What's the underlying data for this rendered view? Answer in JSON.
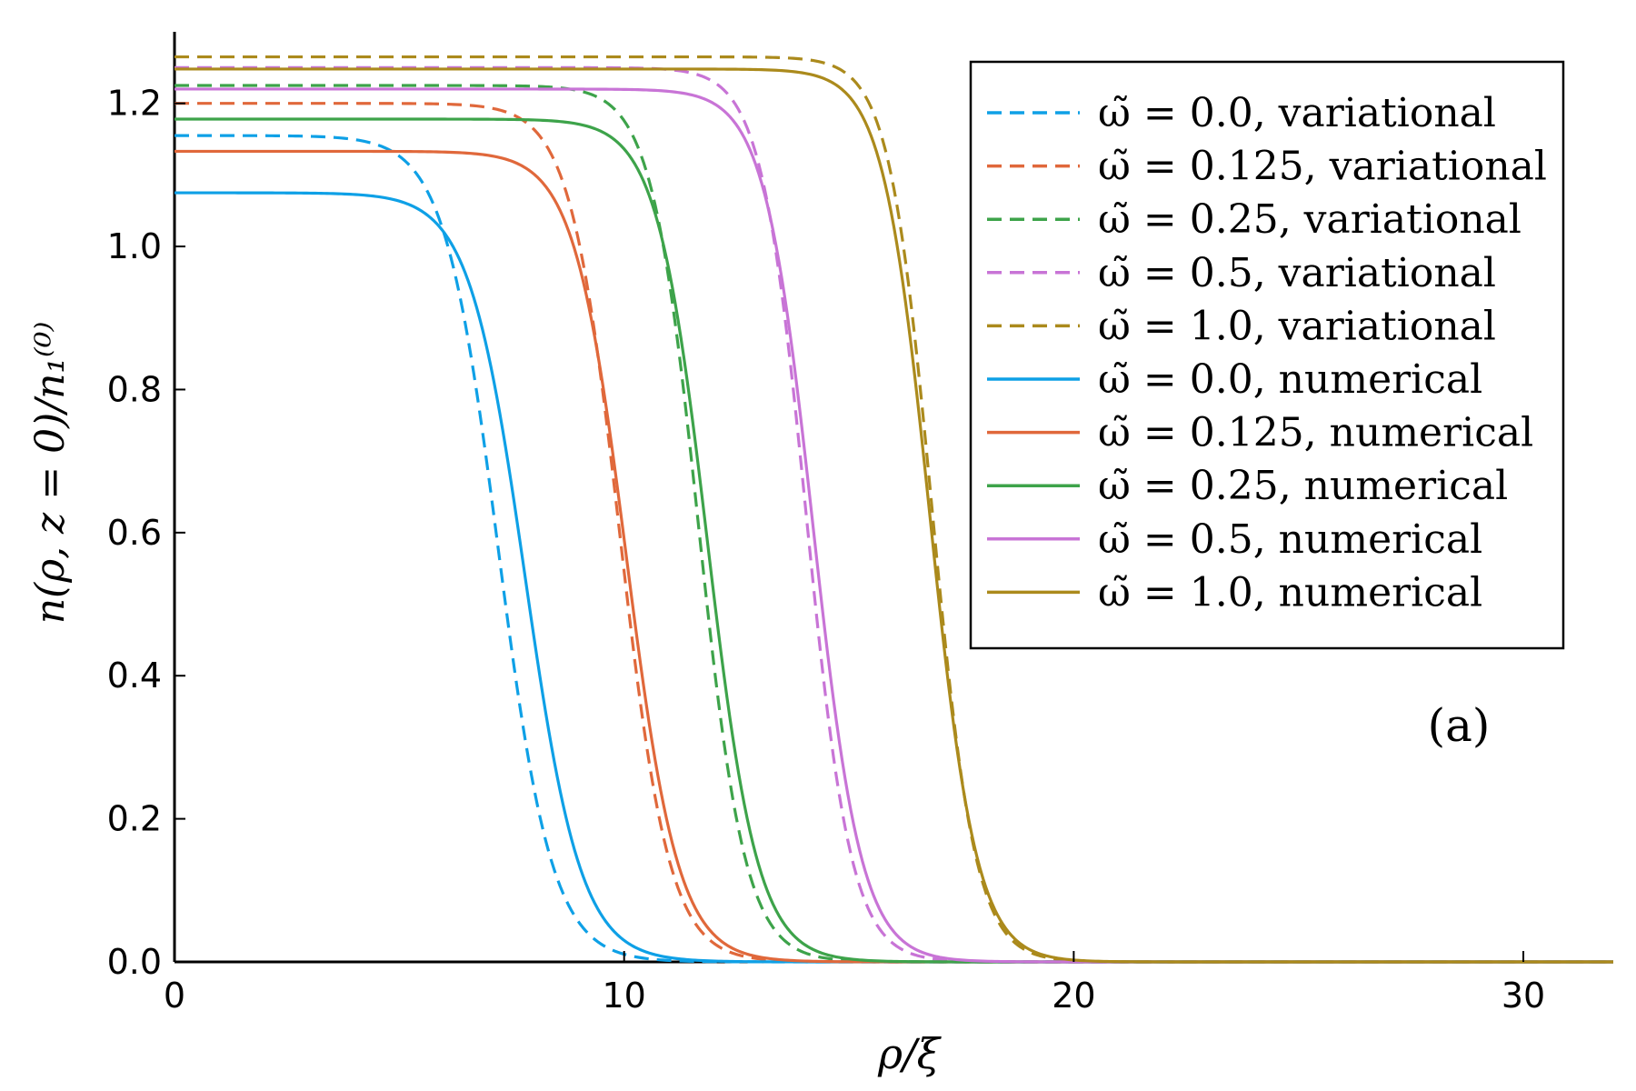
{
  "chart_data": {
    "type": "line",
    "xlabel": "ρ/ξ",
    "ylabel": "n(ρ, z = 0)/n₁⁽⁰⁾",
    "panel_label": "(a)",
    "xlim": [
      0,
      32
    ],
    "ylim": [
      0,
      1.3
    ],
    "xticks": [
      0,
      10,
      20,
      30
    ],
    "xtick_labels": [
      "0",
      "10",
      "20",
      "30"
    ],
    "yticks": [
      0.0,
      0.2,
      0.4,
      0.6,
      0.8,
      1.0,
      1.2
    ],
    "ytick_labels": [
      "0.0",
      "0.2",
      "0.4",
      "0.6",
      "0.8",
      "1.0",
      "1.2"
    ],
    "grid": false,
    "legend_position": "top-right",
    "series": [
      {
        "name": "ω̃ = 0.0, variational",
        "style": "dashed",
        "color": "#0ea0e6",
        "plateau": 1.155,
        "half_radius": 7.2,
        "width": 0.6
      },
      {
        "name": "ω̃ = 0.125, variational",
        "style": "dashed",
        "color": "#e0683b",
        "plateau": 1.2,
        "half_radius": 9.9,
        "width": 0.55
      },
      {
        "name": "ω̃ = 0.25, variational",
        "style": "dashed",
        "color": "#3da34a",
        "plateau": 1.225,
        "half_radius": 11.65,
        "width": 0.52
      },
      {
        "name": "ω̃ = 0.5, variational",
        "style": "dashed",
        "color": "#c874d6",
        "plateau": 1.25,
        "half_radius": 14.05,
        "width": 0.5
      },
      {
        "name": "ω̃ = 1.0, variational",
        "style": "dashed",
        "color": "#ab8a1c",
        "plateau": 1.265,
        "half_radius": 16.85,
        "width": 0.48
      },
      {
        "name": "ω̃ = 0.0, numerical",
        "style": "solid",
        "color": "#0ea0e6",
        "plateau": 1.075,
        "half_radius": 7.8,
        "width": 0.62
      },
      {
        "name": "ω̃ = 0.125, numerical",
        "style": "solid",
        "color": "#e0683b",
        "plateau": 1.133,
        "half_radius": 10.05,
        "width": 0.58
      },
      {
        "name": "ω̃ = 0.25, numerical",
        "style": "solid",
        "color": "#3da34a",
        "plateau": 1.178,
        "half_radius": 11.85,
        "width": 0.56
      },
      {
        "name": "ω̃ = 0.5, numerical",
        "style": "solid",
        "color": "#c874d6",
        "plateau": 1.22,
        "half_radius": 14.2,
        "width": 0.54
      },
      {
        "name": "ω̃ = 1.0, numerical",
        "style": "solid",
        "color": "#ab8a1c",
        "plateau": 1.248,
        "half_radius": 16.8,
        "width": 0.52
      }
    ]
  }
}
